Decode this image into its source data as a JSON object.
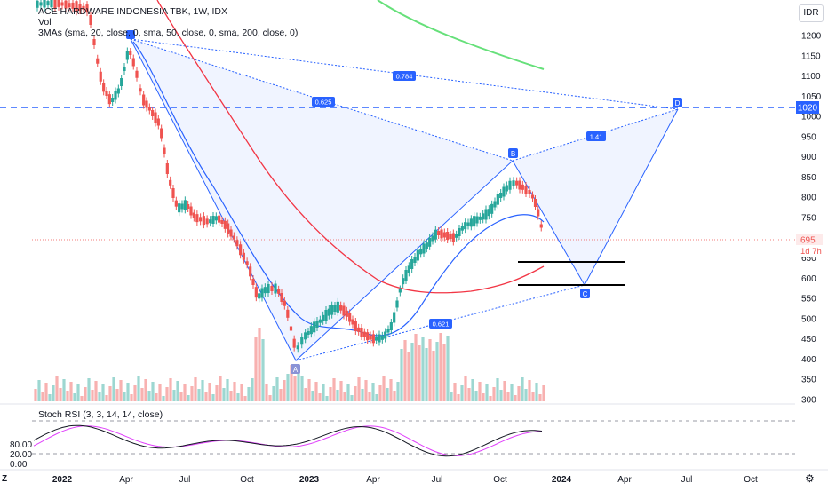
{
  "header": {
    "title": "ACE HARDWARE INDONESIA TBK, 1W, IDX",
    "volume_label": "Vol",
    "indicator_label": "3MAs (sma, 20, close, 0, sma, 50, close, 0, sma, 200, close, 0)",
    "currency": "IDR"
  },
  "price_axis": {
    "ticks": [
      "1200",
      "1150",
      "1100",
      "1050",
      "1000",
      "950",
      "900",
      "850",
      "800",
      "750",
      "700",
      "650",
      "600",
      "550",
      "500",
      "450",
      "400",
      "350",
      "300"
    ],
    "horizontal_line_label": "1020",
    "last_price_label": "695",
    "countdown_label": "1d 7h"
  },
  "time_axis": {
    "ticks": [
      "2022",
      "Apr",
      "Jul",
      "Oct",
      "2023",
      "Apr",
      "Jul",
      "Oct",
      "2024",
      "Apr",
      "Jul",
      "Oct"
    ]
  },
  "rsi": {
    "label": "Stoch RSI (3, 3, 14, 14, close)",
    "ticks": [
      "80.00",
      "20.00",
      "0.00"
    ]
  },
  "pattern": {
    "points": [
      "A",
      "B",
      "C",
      "D"
    ],
    "ratios": [
      "0.784",
      "0.625",
      "1.41",
      "0.621"
    ]
  },
  "colors": {
    "up": "#26a69a",
    "down": "#ef5350",
    "ma20": "#2962ff",
    "ma50": "#f23645",
    "ma200": "#66e07a",
    "pattern": "#2962ff"
  },
  "footer": {
    "logo": "Z",
    "settings_icon": "gear-icon"
  }
}
